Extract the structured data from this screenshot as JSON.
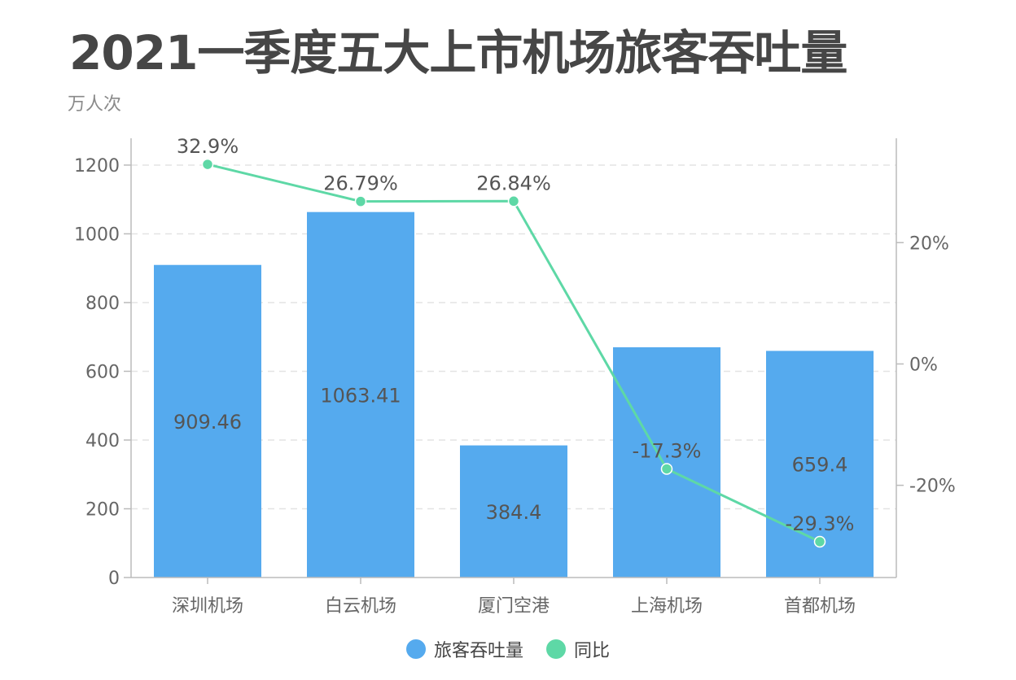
{
  "chart_data": {
    "type": "bar+line",
    "title": "2021一季度五大上市机场旅客吞吐量",
    "subtitle": "万人次",
    "categories": [
      "深圳机场",
      "白云机场",
      "厦门空港",
      "上海机场",
      "首都机场"
    ],
    "series": [
      {
        "name": "旅客吞吐量",
        "type": "bar",
        "axis": "left",
        "color": "#55aaee",
        "values": [
          909.46,
          1063.41,
          384.4,
          670,
          659.4
        ],
        "labels": [
          "909.46",
          "1063.41",
          "384.4",
          "",
          "659.4"
        ]
      },
      {
        "name": "同比",
        "type": "line",
        "axis": "right",
        "color": "#5ed8a6",
        "values": [
          32.9,
          26.79,
          26.84,
          -17.3,
          -29.3
        ],
        "labels": [
          "32.9%",
          "26.79%",
          "26.84%",
          "-17.3%",
          "-29.3%"
        ]
      }
    ],
    "left_axis": {
      "ticks": [
        "0",
        "200",
        "400",
        "600",
        "800",
        "1000",
        "1200"
      ],
      "tick_values": [
        0,
        200,
        400,
        600,
        800,
        1000,
        1200
      ],
      "range": [
        0,
        1278
      ]
    },
    "right_axis": {
      "ticks": [
        "-20%",
        "0%",
        "20%"
      ],
      "tick_values": [
        -20,
        0,
        20
      ],
      "range": [
        -35.2,
        37.2
      ]
    },
    "grid": true,
    "legend_position": "bottom"
  }
}
